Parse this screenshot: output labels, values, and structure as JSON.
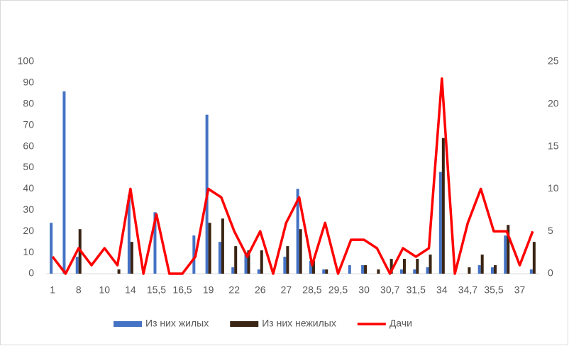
{
  "chart_data": {
    "type": "bar",
    "categories": [
      "1",
      null,
      "8",
      null,
      "10",
      null,
      "14",
      null,
      "15,5",
      null,
      "16,5",
      null,
      "19",
      null,
      "22",
      null,
      "26",
      null,
      "27",
      null,
      "28,5",
      null,
      "29,5",
      null,
      "30",
      null,
      "30,7",
      null,
      "31,5",
      null,
      "34",
      null,
      "34,7",
      null,
      "35,5",
      null,
      "37",
      null
    ],
    "series": [
      {
        "name": "Из них жилых",
        "color": "#4472c4",
        "values": [
          24,
          86,
          8,
          0,
          0,
          0,
          37,
          0,
          29,
          0,
          0,
          18,
          75,
          15,
          3,
          10,
          2,
          0,
          8,
          40,
          6,
          2,
          0,
          4,
          4,
          0,
          0,
          2,
          2,
          3,
          48,
          0,
          0,
          4,
          3,
          18,
          0,
          2
        ]
      },
      {
        "name": "Из них нежилых",
        "color": "#3a2413",
        "values": [
          0,
          0,
          21,
          0,
          0,
          2,
          15,
          0,
          0,
          0,
          0,
          0,
          24,
          26,
          13,
          11,
          11,
          0,
          13,
          21,
          6,
          2,
          0,
          0,
          4,
          2,
          7,
          7,
          7,
          9,
          64,
          0,
          3,
          9,
          4,
          23,
          0,
          15
        ]
      },
      {
        "name": "Дачи",
        "color": "#ff0000",
        "type": "line",
        "axis": "y2",
        "values": [
          2,
          0,
          3,
          1,
          3,
          1,
          10,
          0,
          7,
          0,
          0,
          2,
          10,
          9,
          5,
          2,
          5,
          0,
          6,
          9,
          1,
          6,
          0,
          4,
          4,
          3,
          0,
          3,
          2,
          3,
          23,
          0,
          6,
          10,
          5,
          5,
          1,
          5
        ]
      }
    ],
    "ylim": [
      0,
      100
    ],
    "yticks": [
      0,
      10,
      20,
      30,
      40,
      50,
      60,
      70,
      80,
      90,
      100
    ],
    "y2lim": [
      0,
      25
    ],
    "y2ticks": [
      0,
      5,
      10,
      15,
      20,
      25
    ],
    "grid": false,
    "legend": "bottom"
  }
}
